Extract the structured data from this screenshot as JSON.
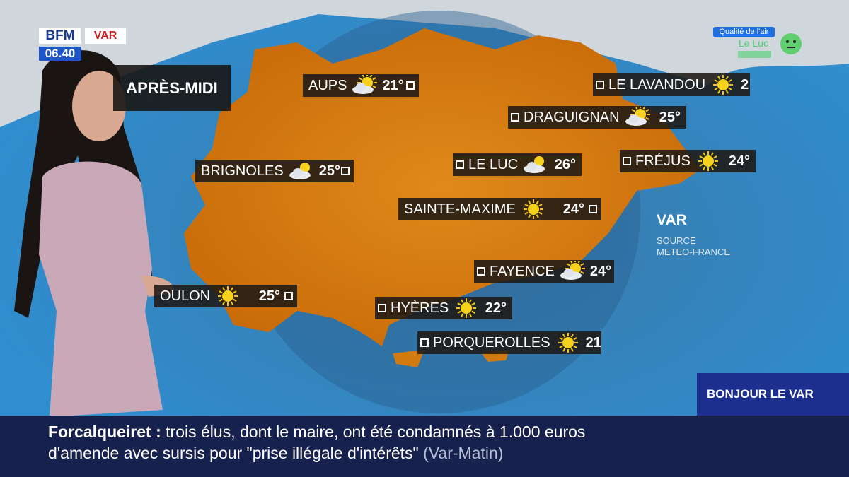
{
  "header": {
    "channel": "BFM",
    "region": "VAR",
    "time": "06.40"
  },
  "air_quality": {
    "label": "Qualité de l'air",
    "city": "Le Luc"
  },
  "period": "APRÈS-MIDI",
  "cities": [
    {
      "name": "AUPS",
      "temp": "21°"
    },
    {
      "name": "LE LAVANDOU",
      "temp": "2"
    },
    {
      "name": "DRAGUIGNAN",
      "temp": "25°"
    },
    {
      "name": "FRÉJUS",
      "temp": "24°"
    },
    {
      "name": "BRIGNOLES",
      "temp": "25°"
    },
    {
      "name": "LE LUC",
      "temp": "26°"
    },
    {
      "name": "SAINTE-MAXIME",
      "temp": "24°"
    },
    {
      "name": "FAYENCE",
      "temp": "24°"
    },
    {
      "name": "OULON",
      "temp": "25°"
    },
    {
      "name": "HYÈRES",
      "temp": "22°"
    },
    {
      "name": "PORQUEROLLES",
      "temp": "21°"
    }
  ],
  "map_label": "VAR",
  "source": {
    "line1": "SOURCE",
    "line2": "METEO-FRANCE"
  },
  "banner": "BONJOUR LE VAR",
  "ticker": {
    "topic": "Forcalqueiret",
    "separator": ":",
    "line1": "trois élus, dont le maire, ont été condamnés à 1.000 euros",
    "line2": "d'amende avec sursis pour \"prise illégale d'intérêts\"",
    "source": "(Var-Matin)"
  }
}
